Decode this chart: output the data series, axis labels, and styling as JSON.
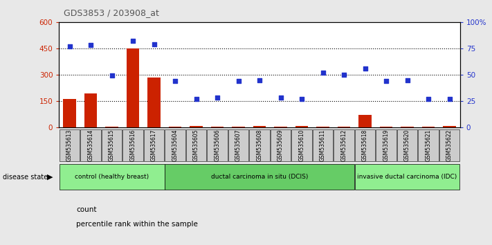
{
  "title": "GDS3853 / 203908_at",
  "samples": [
    "GSM535613",
    "GSM535614",
    "GSM535615",
    "GSM535616",
    "GSM535617",
    "GSM535604",
    "GSM535605",
    "GSM535606",
    "GSM535607",
    "GSM535608",
    "GSM535609",
    "GSM535610",
    "GSM535611",
    "GSM535612",
    "GSM535618",
    "GSM535619",
    "GSM535620",
    "GSM535621",
    "GSM535622"
  ],
  "counts": [
    160,
    195,
    5,
    450,
    285,
    5,
    10,
    5,
    5,
    10,
    5,
    10,
    5,
    5,
    70,
    5,
    5,
    5,
    10
  ],
  "percentiles": [
    77,
    78,
    49,
    82,
    79,
    44,
    27,
    28,
    44,
    45,
    28,
    27,
    52,
    50,
    56,
    44,
    45,
    27,
    27
  ],
  "groups": [
    {
      "label": "control (healthy breast)",
      "start": 0,
      "end": 5,
      "color": "#90ee90"
    },
    {
      "label": "ductal carcinoma in situ (DCIS)",
      "start": 5,
      "end": 14,
      "color": "#66cc66"
    },
    {
      "label": "invasive ductal carcinoma (IDC)",
      "start": 14,
      "end": 19,
      "color": "#90ee90"
    }
  ],
  "ylim_left": [
    0,
    600
  ],
  "ylim_right": [
    0,
    100
  ],
  "yticks_left": [
    0,
    150,
    300,
    450,
    600
  ],
  "yticks_right": [
    0,
    25,
    50,
    75,
    100
  ],
  "bar_color": "#cc2200",
  "scatter_color": "#2233cc",
  "bg_color": "#e8e8e8",
  "plot_bg": "#ffffff",
  "title_color": "#555555",
  "left_tick_color": "#cc2200",
  "right_tick_color": "#2233cc"
}
